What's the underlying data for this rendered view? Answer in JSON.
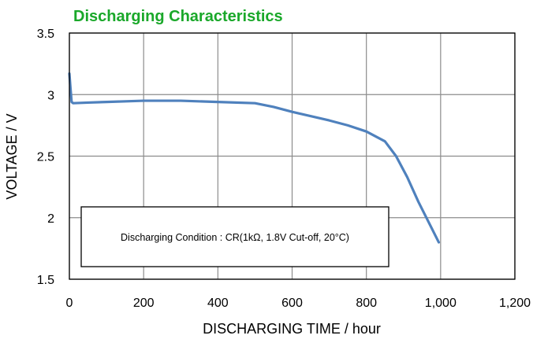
{
  "chart_data": {
    "type": "line",
    "title": "Discharging Characteristics",
    "xlabel": "DISCHARGING TIME / hour",
    "ylabel": "VOLTAGE / V",
    "xlim": [
      0,
      1200
    ],
    "ylim": [
      1.5,
      3.5
    ],
    "xticks": [
      0,
      200,
      400,
      600,
      800,
      1000,
      1200
    ],
    "xtick_labels": [
      "0",
      "200",
      "400",
      "600",
      "800",
      "1,000",
      "1,200"
    ],
    "yticks": [
      1.5,
      2,
      2.5,
      3,
      3.5
    ],
    "ytick_labels": [
      "1.5",
      "2",
      "2.5",
      "3",
      "3.5"
    ],
    "grid": true,
    "annotation": "Discharging Condition : CR(1kΩ, 1.8V Cut-off, 20°C)",
    "series": [
      {
        "color": "#4f81bd",
        "x": [
          0,
          3,
          6,
          10,
          50,
          100,
          200,
          300,
          400,
          500,
          550,
          600,
          700,
          750,
          800,
          850,
          880,
          910,
          940,
          970,
          995
        ],
        "y": [
          3.17,
          3.05,
          2.94,
          2.93,
          2.935,
          2.94,
          2.95,
          2.95,
          2.94,
          2.93,
          2.9,
          2.86,
          2.79,
          2.75,
          2.7,
          2.62,
          2.5,
          2.33,
          2.13,
          1.95,
          1.8
        ]
      }
    ]
  }
}
